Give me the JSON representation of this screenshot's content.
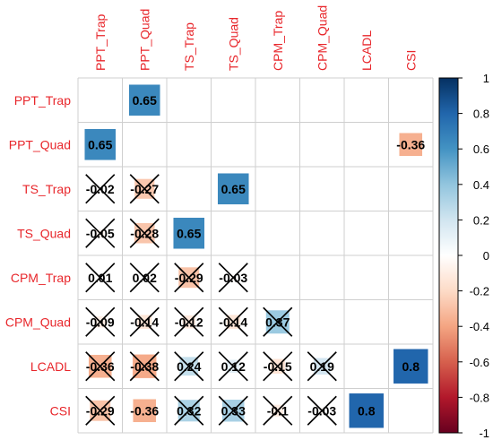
{
  "chart_data": {
    "type": "heatmap",
    "variables": [
      "PPT_Trap",
      "PPT_Quad",
      "TS_Trap",
      "TS_Quad",
      "CPM_Trap",
      "CPM_Quad",
      "LCADL",
      "CSI"
    ],
    "cells": [
      {
        "row": 0,
        "col": 1,
        "value": 0.65,
        "label": "0.65",
        "crossed": false
      },
      {
        "row": 1,
        "col": 0,
        "value": 0.65,
        "label": "0.65",
        "crossed": false
      },
      {
        "row": 1,
        "col": 7,
        "value": -0.36,
        "label": "-0.36",
        "crossed": false
      },
      {
        "row": 2,
        "col": 0,
        "value": -0.02,
        "label": "-0.02",
        "crossed": true
      },
      {
        "row": 2,
        "col": 1,
        "value": -0.27,
        "label": "-0.27",
        "crossed": true
      },
      {
        "row": 2,
        "col": 3,
        "value": 0.65,
        "label": "0.65",
        "crossed": false
      },
      {
        "row": 3,
        "col": 0,
        "value": -0.05,
        "label": "-0.05",
        "crossed": true
      },
      {
        "row": 3,
        "col": 1,
        "value": -0.28,
        "label": "-0.28",
        "crossed": true
      },
      {
        "row": 3,
        "col": 2,
        "value": 0.65,
        "label": "0.65",
        "crossed": false
      },
      {
        "row": 4,
        "col": 0,
        "value": 0.01,
        "label": "0.01",
        "crossed": true
      },
      {
        "row": 4,
        "col": 1,
        "value": 0.02,
        "label": "0.02",
        "crossed": true
      },
      {
        "row": 4,
        "col": 2,
        "value": -0.29,
        "label": "-0.29",
        "crossed": true
      },
      {
        "row": 4,
        "col": 3,
        "value": -0.03,
        "label": "-0.03",
        "crossed": true
      },
      {
        "row": 5,
        "col": 0,
        "value": -0.09,
        "label": "-0.09",
        "crossed": true
      },
      {
        "row": 5,
        "col": 1,
        "value": -0.14,
        "label": "-0.14",
        "crossed": true
      },
      {
        "row": 5,
        "col": 2,
        "value": -0.12,
        "label": "-0.12",
        "crossed": true
      },
      {
        "row": 5,
        "col": 3,
        "value": -0.14,
        "label": "-0.14",
        "crossed": true
      },
      {
        "row": 5,
        "col": 4,
        "value": 0.37,
        "label": "0.37",
        "crossed": true
      },
      {
        "row": 6,
        "col": 0,
        "value": -0.36,
        "label": "-0.36",
        "crossed": true
      },
      {
        "row": 6,
        "col": 1,
        "value": -0.38,
        "label": "-0.38",
        "crossed": true
      },
      {
        "row": 6,
        "col": 2,
        "value": 0.24,
        "label": "0.24",
        "crossed": true
      },
      {
        "row": 6,
        "col": 3,
        "value": 0.12,
        "label": "0.12",
        "crossed": true
      },
      {
        "row": 6,
        "col": 4,
        "value": -0.15,
        "label": "-0.15",
        "crossed": true
      },
      {
        "row": 6,
        "col": 5,
        "value": 0.19,
        "label": "0.19",
        "crossed": true
      },
      {
        "row": 6,
        "col": 7,
        "value": 0.8,
        "label": "0.8",
        "crossed": false
      },
      {
        "row": 7,
        "col": 0,
        "value": -0.29,
        "label": "-0.29",
        "crossed": true
      },
      {
        "row": 7,
        "col": 1,
        "value": -0.36,
        "label": "-0.36",
        "crossed": false
      },
      {
        "row": 7,
        "col": 2,
        "value": 0.32,
        "label": "0.32",
        "crossed": true
      },
      {
        "row": 7,
        "col": 3,
        "value": 0.33,
        "label": "0.33",
        "crossed": true
      },
      {
        "row": 7,
        "col": 4,
        "value": -0.1,
        "label": "-0.1",
        "crossed": true
      },
      {
        "row": 7,
        "col": 5,
        "value": -0.03,
        "label": "-0.03",
        "crossed": true
      },
      {
        "row": 7,
        "col": 6,
        "value": 0.8,
        "label": "0.8",
        "crossed": false
      }
    ],
    "colorbar": {
      "ticks": [
        "1",
        "0.8",
        "0.6",
        "0.4",
        "0.2",
        "0",
        "-0.2",
        "-0.4",
        "-0.6",
        "-0.8",
        "-1"
      ],
      "range": [
        -1,
        1
      ]
    },
    "colors": {
      "label": "#e8262b",
      "low": "#67001f",
      "mid": "#ffffff",
      "high": "#053061",
      "grid": "#cfcfcf"
    }
  }
}
